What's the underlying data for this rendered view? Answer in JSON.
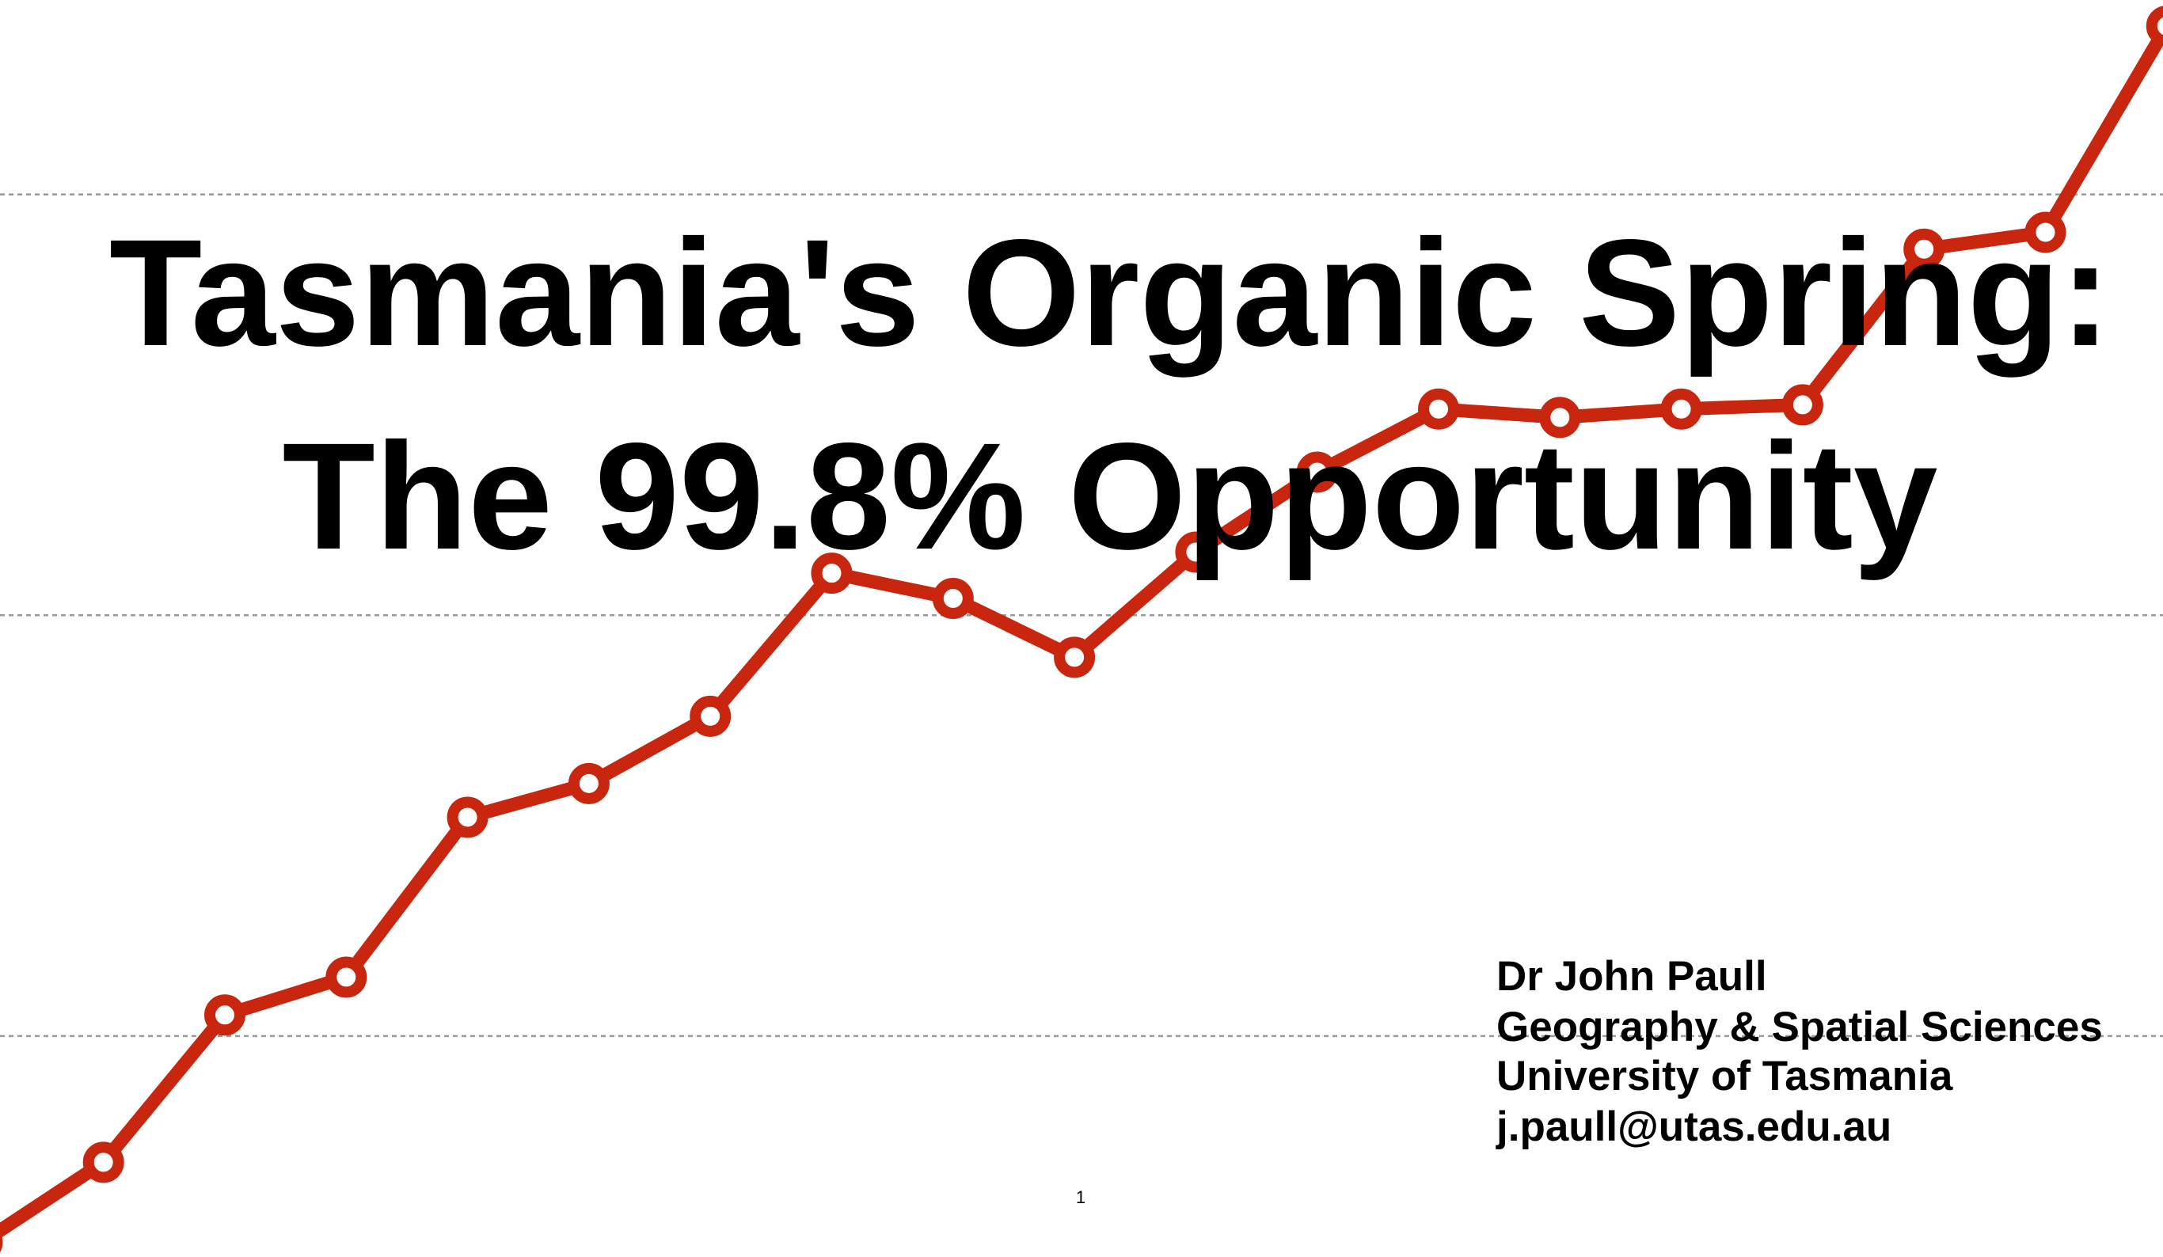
{
  "slide": {
    "title": [
      "Tasmania's Organic Spring:",
      "The 99.8% Opportunity"
    ],
    "author": [
      "Dr John Paull",
      "Geography & Spatial Sciences",
      "University of Tasmania",
      "j.paull@utas.edu.au"
    ],
    "page_number": "1"
  },
  "chart_data": {
    "type": "line",
    "categories": [
      null,
      null,
      null,
      null,
      null,
      null,
      null,
      null,
      null,
      null,
      null,
      null,
      null,
      null,
      null,
      null,
      null,
      null,
      null
    ],
    "series": [
      {
        "color": "#c8260e",
        "values": [
          0.51,
          0.7,
          1.05,
          1.14,
          1.52,
          1.6,
          1.76,
          2.1,
          2.04,
          1.9,
          2.15,
          2.34,
          2.49,
          2.47,
          2.49,
          2.5,
          2.87,
          2.91,
          3.4
        ]
      }
    ],
    "ylim": [
      0.475,
      3.462
    ],
    "yticks": [
      1,
      2,
      3
    ],
    "grid": true
  }
}
